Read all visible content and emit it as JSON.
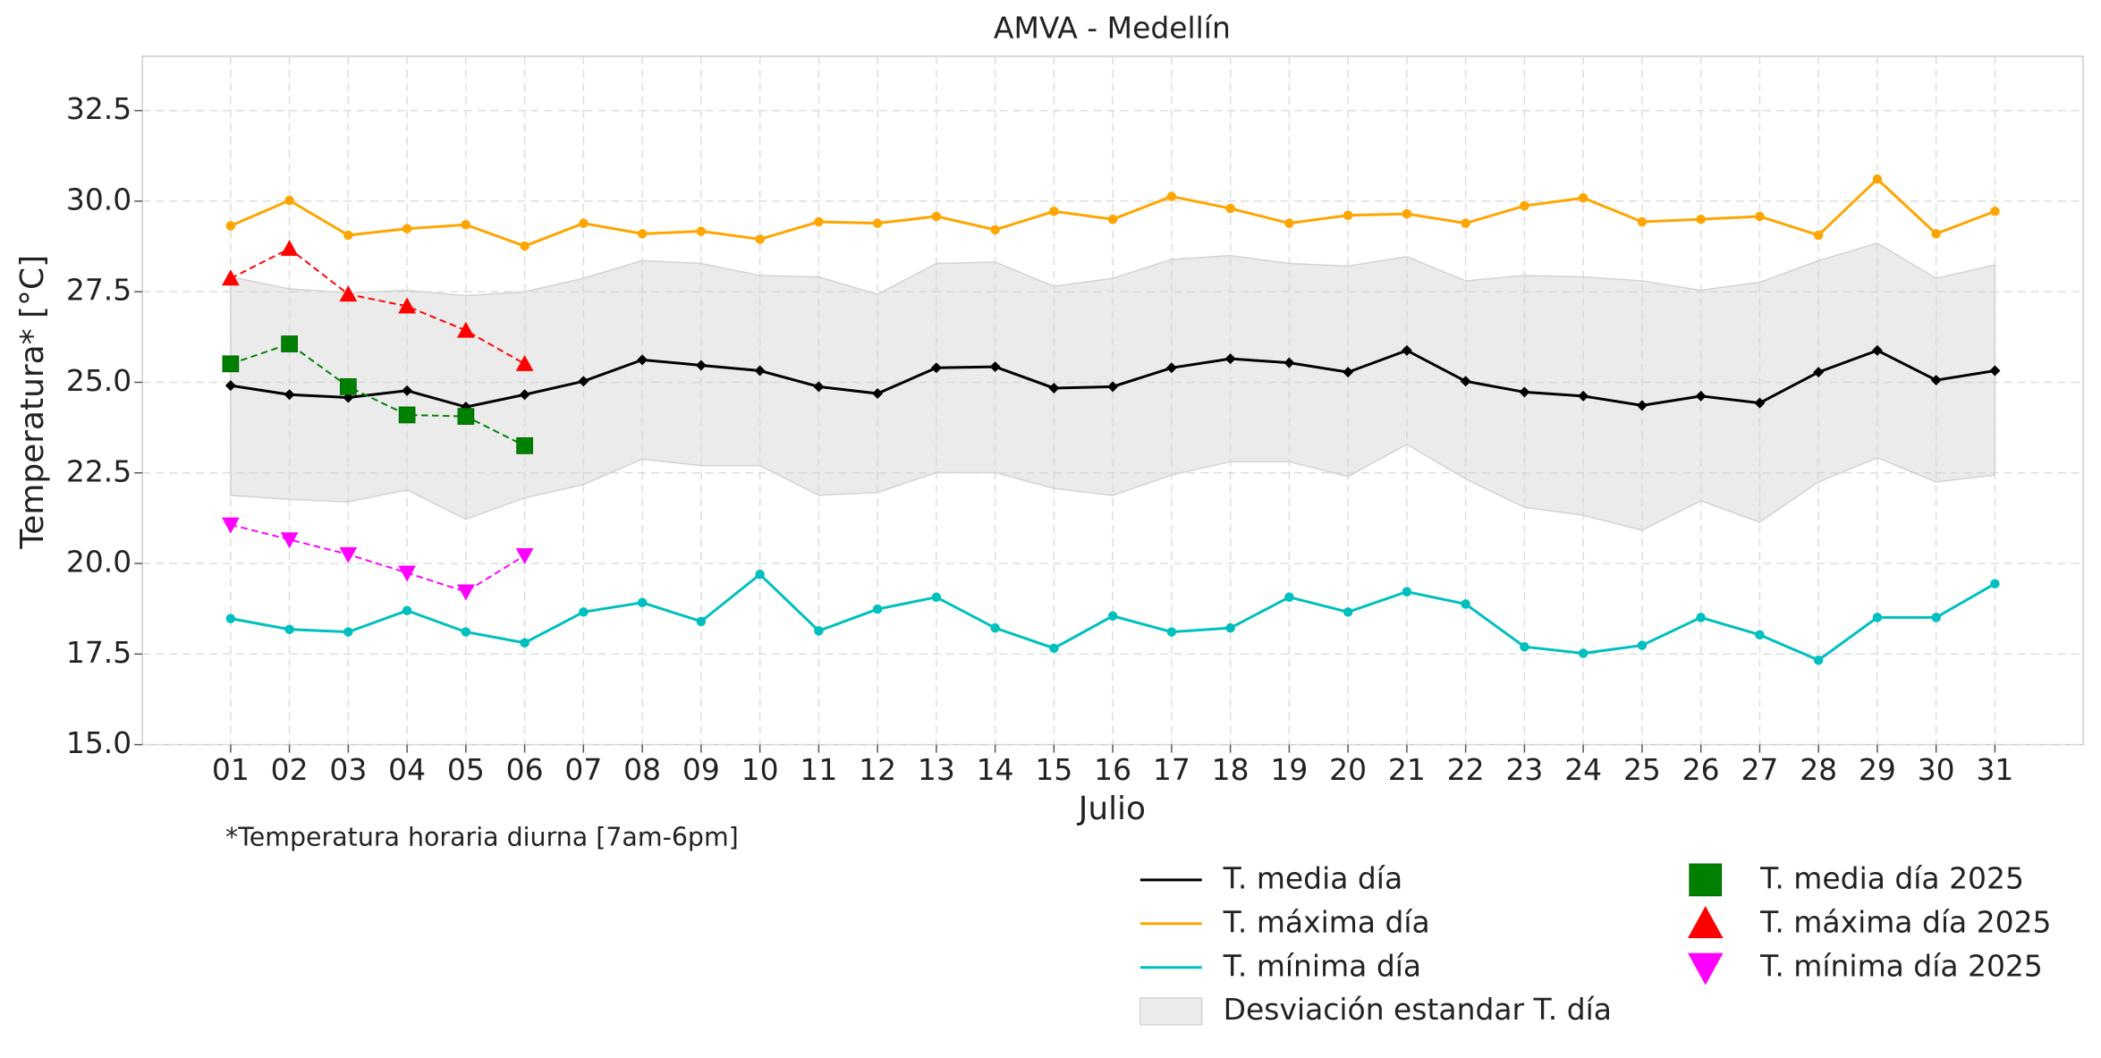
{
  "chart_data": {
    "type": "line",
    "title": "AMVA - Medellín",
    "xlabel": "Julio",
    "ylabel": "Temperatura* [°C]",
    "annotation": "*Temperatura horaria diurna [7am-6pm]",
    "categories": [
      "01",
      "02",
      "03",
      "04",
      "05",
      "06",
      "07",
      "08",
      "09",
      "10",
      "11",
      "12",
      "13",
      "14",
      "15",
      "16",
      "17",
      "18",
      "19",
      "20",
      "21",
      "22",
      "23",
      "24",
      "25",
      "26",
      "27",
      "28",
      "29",
      "30",
      "31"
    ],
    "ylim": [
      15,
      34
    ],
    "yticks": [
      {
        "value": 15,
        "label": "15.0"
      },
      17.5,
      {
        "value": 20,
        "label": "20.0"
      },
      22.5,
      {
        "value": 25,
        "label": "25.0"
      },
      27.5,
      {
        "value": 30,
        "label": "30.0"
      },
      32.5
    ],
    "grid": true,
    "legend": "lower right",
    "series": [
      {
        "name": "T. media día",
        "color": "#000000",
        "marker": "diamond",
        "linestyle": "solid",
        "values": [
          24.91,
          24.66,
          24.58,
          24.77,
          24.32,
          24.66,
          25.03,
          25.62,
          25.47,
          25.32,
          24.88,
          24.69,
          25.4,
          25.43,
          24.84,
          24.88,
          25.4,
          25.65,
          25.54,
          25.28,
          25.88,
          25.03,
          24.73,
          24.62,
          24.36,
          24.62,
          24.43,
          25.28,
          25.88,
          25.06,
          25.32
        ]
      },
      {
        "name": "T. máxima día",
        "color": "#ffa500",
        "marker": "circle",
        "linestyle": "solid",
        "values": [
          29.32,
          30.02,
          29.06,
          29.24,
          29.35,
          28.76,
          29.39,
          29.1,
          29.17,
          28.95,
          29.43,
          29.39,
          29.58,
          29.21,
          29.72,
          29.5,
          30.13,
          29.8,
          29.39,
          29.61,
          29.65,
          29.39,
          29.87,
          30.09,
          29.43,
          29.5,
          29.58,
          29.06,
          30.61,
          29.1,
          29.72
        ]
      },
      {
        "name": "T. mínima día",
        "color": "#00bfbf",
        "marker": "circle",
        "linestyle": "solid",
        "values": [
          18.48,
          18.18,
          18.11,
          18.7,
          18.11,
          17.81,
          18.66,
          18.92,
          18.4,
          19.7,
          18.14,
          18.74,
          19.07,
          18.22,
          17.66,
          18.55,
          18.11,
          18.22,
          19.07,
          18.66,
          19.22,
          18.88,
          17.7,
          17.52,
          17.74,
          18.51,
          18.03,
          17.33,
          18.51,
          18.51,
          19.44
        ]
      },
      {
        "name": "Desviación estandar T. día",
        "color": "#d3d3d3",
        "kind": "band",
        "upper": [
          27.91,
          27.58,
          27.47,
          27.54,
          27.39,
          27.5,
          27.87,
          28.36,
          28.28,
          27.95,
          27.91,
          27.43,
          28.28,
          28.32,
          27.65,
          27.87,
          28.39,
          28.5,
          28.28,
          28.21,
          28.47,
          27.8,
          27.95,
          27.91,
          27.8,
          27.54,
          27.76,
          28.36,
          28.84,
          27.87,
          28.24
        ],
        "lower": [
          21.88,
          21.77,
          21.7,
          22.03,
          21.22,
          21.81,
          22.18,
          22.88,
          22.7,
          22.7,
          21.88,
          21.96,
          22.51,
          22.51,
          22.07,
          21.88,
          22.44,
          22.81,
          22.81,
          22.4,
          23.29,
          22.33,
          21.55,
          21.33,
          20.92,
          21.73,
          21.14,
          22.25,
          22.92,
          22.25,
          22.44
        ]
      },
      {
        "name": "T. media día 2025",
        "color": "#008000",
        "marker": "square",
        "linestyle": "dashed",
        "values": [
          25.51,
          26.06,
          24.88,
          24.1,
          24.06,
          23.25,
          null,
          null,
          null,
          null,
          null,
          null,
          null,
          null,
          null,
          null,
          null,
          null,
          null,
          null,
          null,
          null,
          null,
          null,
          null,
          null,
          null,
          null,
          null,
          null,
          null
        ]
      },
      {
        "name": "T. máxima día 2025",
        "color": "#ff0000",
        "marker": "triangle-up",
        "linestyle": "dashed",
        "values": [
          27.87,
          28.69,
          27.43,
          27.1,
          26.43,
          25.51,
          null,
          null,
          null,
          null,
          null,
          null,
          null,
          null,
          null,
          null,
          null,
          null,
          null,
          null,
          null,
          null,
          null,
          null,
          null,
          null,
          null,
          null,
          null,
          null,
          null
        ]
      },
      {
        "name": "T. mínima día 2025",
        "color": "#ff00ff",
        "marker": "triangle-down",
        "linestyle": "dashed",
        "values": [
          21.07,
          20.66,
          20.25,
          19.74,
          19.22,
          20.22,
          null,
          null,
          null,
          null,
          null,
          null,
          null,
          null,
          null,
          null,
          null,
          null,
          null,
          null,
          null,
          null,
          null,
          null,
          null,
          null,
          null,
          null,
          null,
          null,
          null
        ]
      }
    ]
  }
}
